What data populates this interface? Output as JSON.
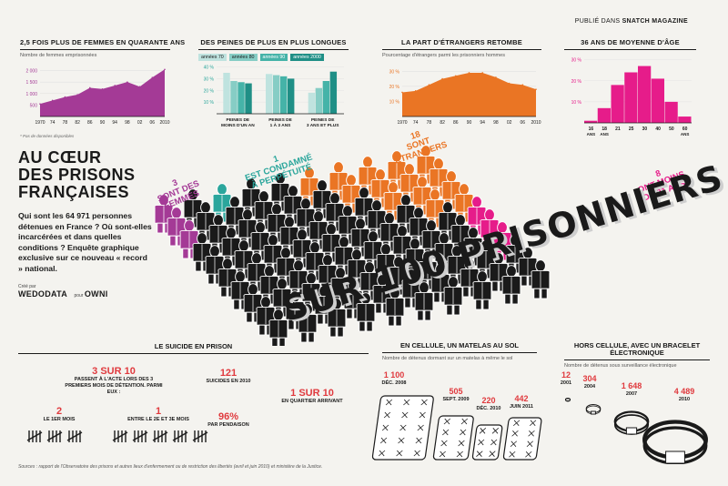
{
  "publisher": {
    "prefix": "Publié dans",
    "name": "SNATCH MAGAZINE"
  },
  "colors": {
    "purple": "#a43a96",
    "teal": "#2ba69c",
    "orange": "#ea7524",
    "magenta": "#e61c8a",
    "red": "#e03a3e",
    "dark": "#1a1a1a"
  },
  "chart_data": [
    {
      "type": "area",
      "title": "2,5 fois plus de femmes en quarante ans",
      "ylabel": "Nombre de femmes emprisonnées",
      "x": [
        1970,
        1974,
        1978,
        1982,
        1986,
        1990,
        1994,
        1998,
        2002,
        2006,
        2010
      ],
      "xticks": [
        "1970",
        "74",
        "78",
        "82",
        "86",
        "90",
        "94",
        "98",
        "02",
        "06",
        "2010"
      ],
      "yticks": [
        "2 000",
        "1 500",
        "1 000",
        "500"
      ],
      "values": [
        550,
        700,
        850,
        950,
        1250,
        1200,
        1350,
        1500,
        1300,
        1700,
        2050
      ],
      "note": "* Pas de données disponibles",
      "ylim": [
        0,
        2300
      ]
    },
    {
      "type": "bar",
      "title": "Des peines de plus en plus longues",
      "legend": [
        "années 70",
        "années 80",
        "années 90",
        "années 2000"
      ],
      "yticks": [
        "40 %",
        "30 %",
        "20 %",
        "10 %"
      ],
      "categories": [
        "Peines de moins d'un an",
        "Peines de 1 à 3 ans",
        "Peines de 3 ans et plus"
      ],
      "series": [
        {
          "name": "années 70",
          "values": [
            35,
            34,
            18
          ]
        },
        {
          "name": "années 80",
          "values": [
            28,
            33,
            22
          ]
        },
        {
          "name": "années 90",
          "values": [
            27,
            32,
            28
          ]
        },
        {
          "name": "années 2000",
          "values": [
            26,
            30,
            36
          ]
        }
      ],
      "ylim": [
        0,
        42
      ]
    },
    {
      "type": "area",
      "title": "La part d'étrangers retombe",
      "ylabel": "Pourcentage d'étrangers parmi les prisonniers hommes",
      "x": [
        1970,
        1974,
        1978,
        1982,
        1986,
        1990,
        1994,
        1998,
        2002,
        2006,
        2010
      ],
      "xticks": [
        "1970",
        "74",
        "78",
        "82",
        "86",
        "90",
        "94",
        "98",
        "02",
        "06",
        "2010"
      ],
      "yticks": [
        "30 %",
        "20 %",
        "10 %"
      ],
      "values": [
        16,
        17,
        21,
        25,
        27,
        29,
        29,
        26,
        22,
        21,
        18
      ],
      "ylim": [
        0,
        35
      ]
    },
    {
      "type": "bar",
      "title": "36 ans de moyenne d'âge",
      "yticks": [
        "30 %",
        "20 %",
        "10 %"
      ],
      "categories": [
        "16",
        "18",
        "21",
        "25",
        "30",
        "40",
        "50",
        "60"
      ],
      "xticks": [
        "16 ans",
        "18 ans",
        "21",
        "25",
        "30",
        "40",
        "50",
        "60 ans"
      ],
      "values": [
        1,
        7,
        18,
        24,
        27,
        21,
        10,
        3
      ],
      "ylim": [
        0,
        32
      ]
    }
  ],
  "main": {
    "title_lines": [
      "AU CŒUR",
      "DES PRISONS",
      "FRANÇAISES"
    ],
    "intro": "Qui sont les 64 971 personnes détenues en France ? Où sont-elles incarcérées et dans quelles conditions ? Enquête graphique exclusive sur ce nouveau « record » national.",
    "credit_label": "Créé par",
    "credit_brand": "WEDODATA",
    "credit_for": "pour",
    "credit_for_brand": "OWNI",
    "big_statement": "SUR 100 PRISONNIERS"
  },
  "crowd": {
    "women": {
      "line1": "3",
      "line2": "SONT DES",
      "line3": "FEMMES"
    },
    "life": {
      "line1": "1",
      "line2": "EST CONDAMNÉ",
      "line3": "À PERPÉTUITÉ"
    },
    "foreign": {
      "line1": "18",
      "line2": "SONT",
      "line3": "ÉTRANGERS"
    },
    "young": {
      "line1": "8",
      "line2": "ONT MOINS",
      "line3": "DE 21 ANS"
    }
  },
  "suicide": {
    "title": "LE SUICIDE EN PRISON",
    "stat1_value": "3 SUR 10",
    "stat1_text": "PASSENT À L'ACTE LORS DES 3 PREMIERS MOIS DE DÉTENTION. PARMI EUX :",
    "first_value": "2",
    "first_text": "LE 1ER MOIS",
    "second_value": "1",
    "second_text": "ENTRE LE 2E ET 3E MOIS",
    "stat2_value": "121",
    "stat2_text": "SUICIDES EN 2010",
    "stat3_value": "1 SUR 10",
    "stat3_text": "EN QUARTIER ARRIVANT",
    "stat4_value": "96%",
    "stat4_text": "PAR PENDAISON"
  },
  "mattress": {
    "title": "EN CELLULE, UN MATELAS AU SOL",
    "subtitle": "Nombre de détenus dormant sur un matelas à même le sol",
    "items": [
      {
        "value": "1 100",
        "date": "DÉC. 2008"
      },
      {
        "value": "505",
        "date": "SEPT. 2009"
      },
      {
        "value": "220",
        "date": "DÉC. 2010"
      },
      {
        "value": "442",
        "date": "JUIN 2011"
      }
    ]
  },
  "bracelet": {
    "title": "HORS CELLULE, AVEC UN BRACELET ÉLECTRONIQUE",
    "subtitle": "Nombre de détenus sous surveillance électronique",
    "items": [
      {
        "value": "12",
        "year": "2001"
      },
      {
        "value": "304",
        "year": "2004"
      },
      {
        "value": "1 648",
        "year": "2007"
      },
      {
        "value": "4 489",
        "year": "2010"
      }
    ]
  },
  "sources": "Sources : rapport de l'Observatoire des prisons et autres lieux d'enfermement ou de restriction des libertés (avril et juin 2010) et ministère de la Justice."
}
